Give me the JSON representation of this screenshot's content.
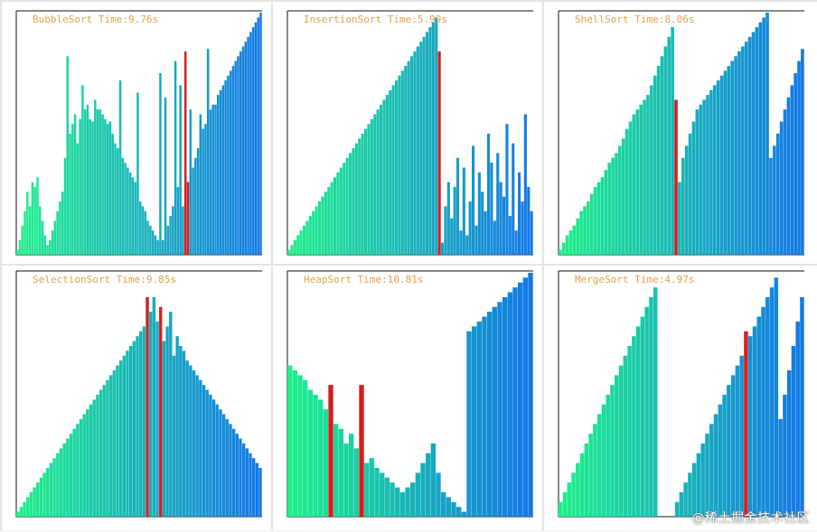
{
  "panels": [
    {
      "key": "bubble",
      "title": "BubbleSort Time:9.76s",
      "heights": [
        2,
        6,
        12,
        18,
        26,
        20,
        30,
        28,
        32,
        20,
        14,
        8,
        4,
        6,
        10,
        14,
        18,
        22,
        26,
        40,
        34,
        50,
        54,
        58,
        46,
        56,
        56,
        60,
        62,
        56,
        58,
        64,
        60,
        60,
        58,
        56,
        54,
        52,
        50,
        46,
        44,
        42,
        40,
        38,
        36,
        34,
        32,
        30,
        24,
        22,
        20,
        18,
        14,
        12,
        10,
        8,
        6,
        4,
        6,
        8,
        12,
        16,
        20,
        24,
        28,
        30,
        20,
        26,
        24,
        30,
        36,
        40,
        44,
        48,
        52,
        54,
        58,
        60,
        62,
        64,
        66,
        68,
        70,
        72,
        74,
        76,
        78,
        80,
        82,
        84,
        86,
        88,
        90,
        92,
        94,
        96,
        98,
        100
      ],
      "spikes": [
        {
          "index": 20,
          "height": 82
        },
        {
          "index": 26,
          "height": 70
        },
        {
          "index": 30,
          "height": 55
        },
        {
          "index": 37,
          "height": 55
        },
        {
          "index": 41,
          "height": 72
        },
        {
          "index": 48,
          "height": 67
        },
        {
          "index": 57,
          "height": 75
        },
        {
          "index": 59,
          "height": 65
        },
        {
          "index": 63,
          "height": 80
        },
        {
          "index": 65,
          "height": 70
        },
        {
          "index": 69,
          "height": 60
        },
        {
          "index": 73,
          "height": 58
        },
        {
          "index": 76,
          "height": 85
        },
        {
          "index": 79,
          "height": 62
        }
      ],
      "highlight": [
        {
          "index": 67,
          "height": 84
        },
        {
          "index": 68,
          "height": 30
        }
      ]
    },
    {
      "key": "insertion",
      "title": "InsertionSort Time:5.99s",
      "heights": [
        2,
        4,
        6,
        8,
        10,
        12,
        14,
        16,
        18,
        20,
        22,
        24,
        26,
        28,
        30,
        32,
        34,
        36,
        38,
        40,
        42,
        44,
        46,
        48,
        50,
        52,
        54,
        56,
        58,
        60,
        62,
        64,
        66,
        68,
        70,
        72,
        74,
        76,
        78,
        80,
        82,
        84,
        86,
        88,
        90,
        92,
        94,
        96,
        98,
        100,
        5,
        20,
        30,
        15,
        28,
        40,
        10,
        36,
        8,
        22,
        45,
        12,
        34,
        26,
        18,
        50,
        38,
        14,
        42,
        30,
        24,
        54,
        16,
        46,
        10,
        34,
        22,
        58,
        28,
        18
      ],
      "spikes": [],
      "highlight": [
        {
          "index": 49,
          "height": 84
        }
      ]
    },
    {
      "key": "shell",
      "title": "ShellSort Time:8.06s",
      "heights": [
        2,
        5,
        8,
        10,
        12,
        15,
        18,
        20,
        22,
        25,
        28,
        30,
        32,
        35,
        38,
        40,
        42,
        45,
        48,
        52,
        55,
        58,
        60,
        62,
        64,
        66,
        70,
        74,
        78,
        82,
        86,
        90,
        94,
        98,
        30,
        40,
        45,
        50,
        55,
        60,
        62,
        64,
        66,
        68,
        70,
        72,
        74,
        76,
        78,
        80,
        82,
        84,
        86,
        88,
        90,
        92,
        94,
        96,
        98,
        100,
        40,
        45,
        50,
        55,
        60,
        65,
        70,
        75,
        80,
        85
      ],
      "spikes": [],
      "highlight": [
        {
          "index": 33,
          "height": 64
        }
      ]
    },
    {
      "key": "selection",
      "title": "SelectionSort Time:9.85s",
      "heights": [
        2,
        4,
        6,
        8,
        10,
        12,
        14,
        16,
        18,
        20,
        22,
        24,
        26,
        28,
        30,
        32,
        34,
        36,
        38,
        40,
        42,
        44,
        46,
        48,
        50,
        52,
        54,
        56,
        58,
        60,
        62,
        64,
        66,
        68,
        70,
        72,
        74,
        76,
        78,
        80,
        84,
        90,
        80,
        86,
        72,
        78,
        84,
        66,
        74,
        70,
        68,
        64,
        62,
        60,
        58,
        56,
        54,
        52,
        50,
        48,
        46,
        44,
        42,
        40,
        38,
        36,
        34,
        32,
        30,
        28,
        26,
        24,
        22,
        20
      ],
      "spikes": [],
      "highlight": [
        {
          "index": 39,
          "height": 90
        },
        {
          "index": 43,
          "height": 86
        }
      ]
    },
    {
      "key": "heap",
      "title": "HeapSort Time:10.81s",
      "heights": [
        62,
        60,
        58,
        56,
        52,
        50,
        48,
        44,
        40,
        38,
        36,
        30,
        34,
        28,
        26,
        22,
        24,
        20,
        18,
        16,
        14,
        12,
        10,
        12,
        14,
        18,
        22,
        26,
        30,
        18,
        10,
        8,
        6,
        4,
        2,
        76,
        78,
        80,
        82,
        84,
        86,
        88,
        90,
        92,
        94,
        96,
        98,
        100
      ],
      "spikes": [],
      "highlight": [
        {
          "index": 8,
          "height": 54
        },
        {
          "index": 14,
          "height": 54
        }
      ]
    },
    {
      "key": "merge",
      "title": "MergeSort Time:4.97s",
      "heights": [
        6,
        10,
        14,
        18,
        22,
        26,
        30,
        34,
        38,
        42,
        46,
        50,
        54,
        58,
        62,
        66,
        70,
        74,
        78,
        82,
        86,
        90,
        94,
        0,
        0,
        0,
        0,
        6,
        10,
        14,
        18,
        22,
        26,
        30,
        34,
        38,
        42,
        46,
        50,
        54,
        58,
        62,
        66,
        70,
        74,
        78,
        82,
        86,
        90,
        94,
        98,
        40,
        50,
        60,
        70,
        80,
        90
      ],
      "spikes": [],
      "highlight": [
        {
          "index": 43,
          "height": 76
        }
      ]
    }
  ],
  "watermark": "@稀土掘金技术社区",
  "colors": {
    "bar_start": "#1df08a",
    "bar_end": "#1378e6",
    "highlight": "#d61d1d",
    "title": "#e2a14a"
  }
}
